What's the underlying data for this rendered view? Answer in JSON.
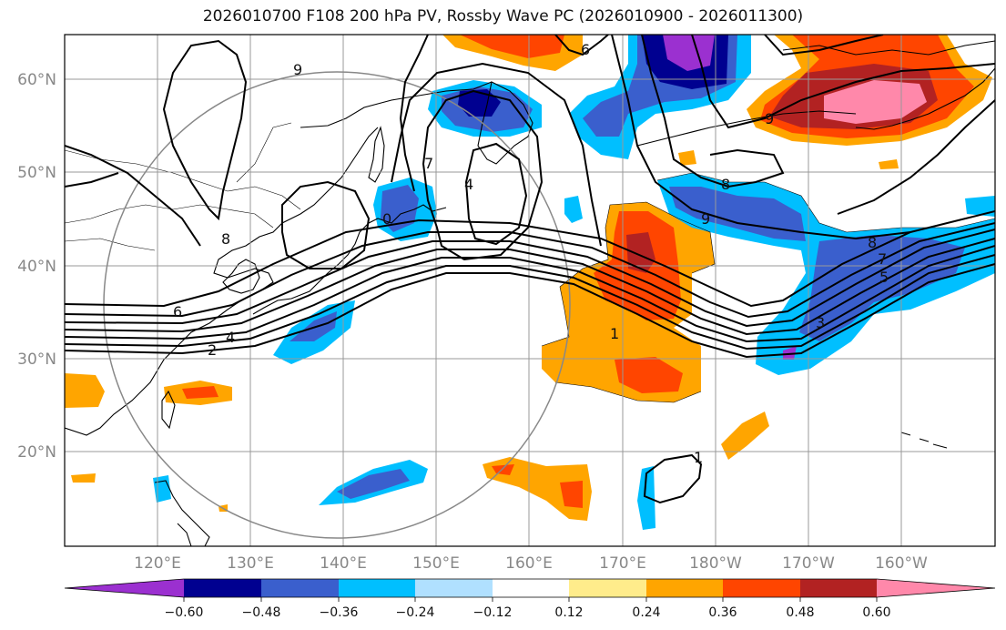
{
  "title": "2026010700 F108 200 hPa PV, Rossby Wave PC (2026010900 - 2026011300)",
  "map": {
    "lon_labels": [
      "120°E",
      "130°E",
      "140°E",
      "150°E",
      "160°E",
      "170°E",
      "180°W",
      "170°W",
      "160°W"
    ],
    "lat_labels": [
      "60°N",
      "50°N",
      "40°N",
      "30°N",
      "20°N"
    ],
    "contour_labels": [
      "6",
      "2",
      "4",
      "8",
      "9",
      "7",
      "4",
      "0",
      "6",
      "9",
      "8",
      "9",
      "8",
      "7",
      "5",
      "3",
      "1",
      "1"
    ]
  },
  "colorbar": {
    "colors": [
      "#9b30d0",
      "#000090",
      "#3a5fcd",
      "#00bfff",
      "#b0e0ff",
      "#ffffff",
      "#ffec8b",
      "#ffa500",
      "#ff4500",
      "#b22222",
      "#ff88aa"
    ],
    "tick_labels": [
      "−0.60",
      "−0.48",
      "−0.36",
      "−0.24",
      "−0.12",
      "0.12",
      "0.24",
      "0.36",
      "0.48",
      "0.60"
    ]
  }
}
